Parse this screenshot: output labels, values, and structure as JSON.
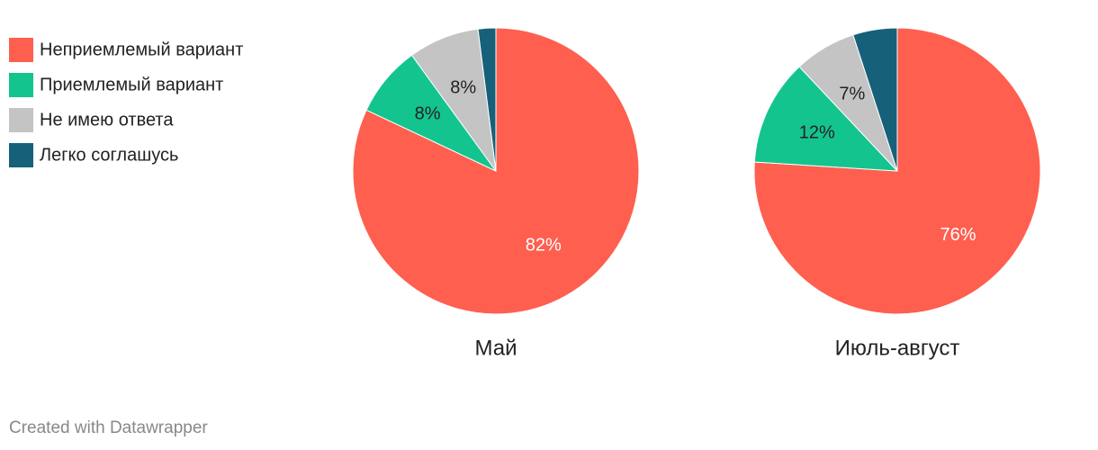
{
  "legend": {
    "categories": [
      "Неприемлемый вариант",
      "Приемлемый вариант",
      "Не имею ответа",
      "Легко соглашусь"
    ],
    "colors": [
      "#fe5f4f",
      "#13c48e",
      "#c4c4c4",
      "#16607a"
    ]
  },
  "chart_data": [
    {
      "type": "pie",
      "title": "Май",
      "values": [
        82,
        8,
        8,
        2
      ],
      "value_labels": [
        "82%",
        "8%",
        "8%",
        null
      ]
    },
    {
      "type": "pie",
      "title": "Июль-август",
      "values": [
        76,
        12,
        7,
        5
      ],
      "value_labels": [
        "76%",
        "12%",
        "7%",
        null
      ]
    }
  ],
  "footer": "Created with Datawrapper"
}
